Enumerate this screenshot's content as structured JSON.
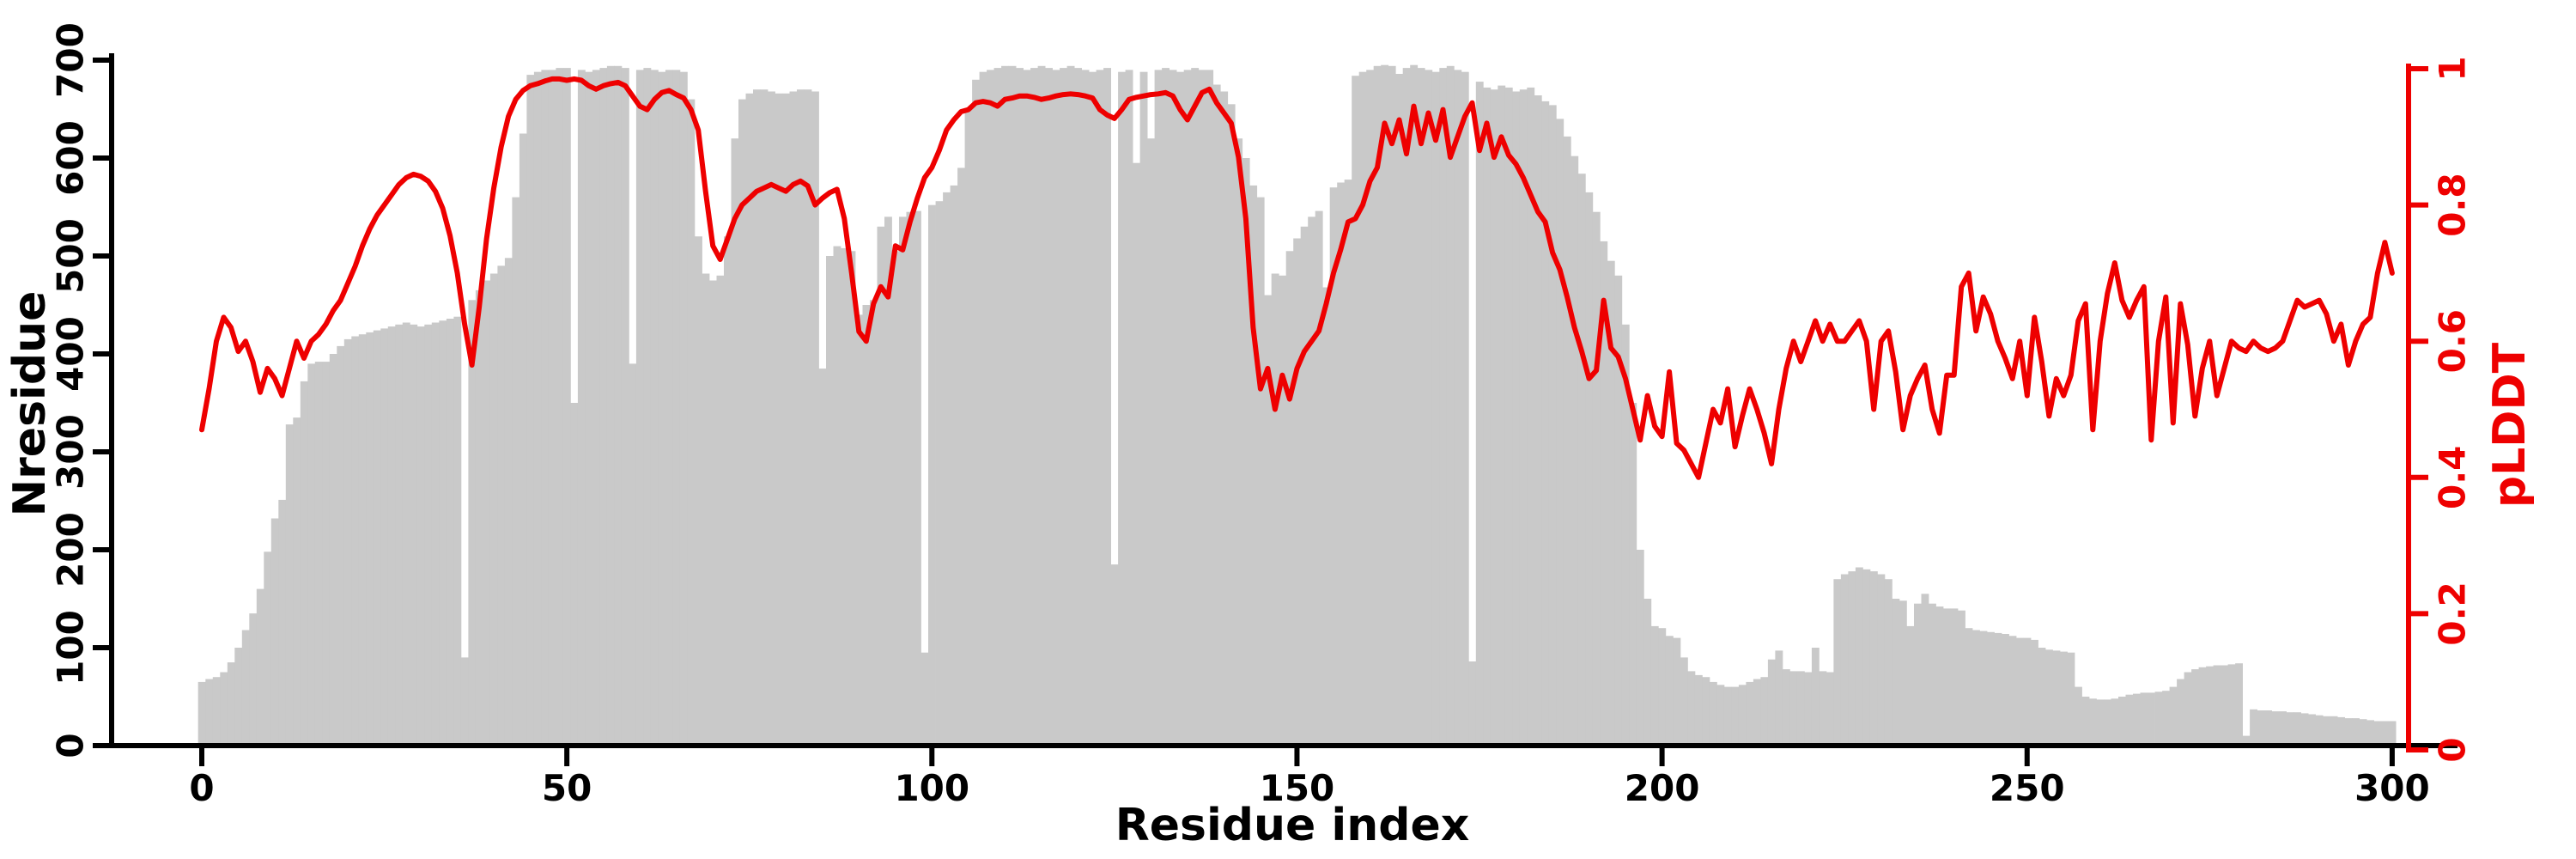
{
  "figure": {
    "background": "#ffffff",
    "bar_color": "#c9c9c9",
    "line_color": "#ee0000",
    "axis_color": "#000000"
  },
  "axes": {
    "x": {
      "label": "Residue index",
      "tick_values": [
        0,
        50,
        100,
        150,
        200,
        250,
        300
      ],
      "range": [
        0,
        300
      ]
    },
    "y_left": {
      "label": "Nresidue",
      "tick_values": [
        0,
        100,
        200,
        300,
        400,
        500,
        600,
        700
      ],
      "range": [
        0,
        700
      ],
      "color": "#000000"
    },
    "y_right": {
      "label": "pLDDT",
      "tick_labels": [
        "0",
        "0.2",
        "0.4",
        "0.6",
        "0.8",
        "1"
      ],
      "tick_values": [
        0,
        0.2,
        0.4,
        0.6,
        0.8,
        1
      ],
      "range": [
        0,
        1
      ],
      "color": "#ee0000"
    }
  },
  "chart_data": {
    "type": "combo",
    "x": {
      "start": 0,
      "step": 1,
      "label": "Residue index"
    },
    "grid": false,
    "legend": "none",
    "series": [
      {
        "name": "Nresidue",
        "type": "bar",
        "axis": "left",
        "color": "#c9c9c9",
        "ylim": [
          0,
          700
        ],
        "values": [
          65,
          68,
          70,
          75,
          85,
          100,
          118,
          135,
          160,
          198,
          232,
          251,
          328,
          335,
          372,
          390,
          392,
          392,
          400,
          408,
          415,
          418,
          420,
          422,
          424,
          426,
          428,
          430,
          432,
          430,
          428,
          430,
          432,
          434,
          436,
          438,
          90,
          455,
          465,
          475,
          482,
          490,
          498,
          560,
          625,
          685,
          688,
          690,
          690,
          692,
          692,
          350,
          690,
          688,
          690,
          692,
          694,
          694,
          692,
          390,
          690,
          692,
          690,
          688,
          690,
          690,
          688,
          660,
          520,
          482,
          475,
          480,
          520,
          620,
          660,
          666,
          670,
          670,
          668,
          666,
          666,
          668,
          670,
          670,
          668,
          385,
          500,
          510,
          508,
          505,
          440,
          450,
          455,
          530,
          540,
          505,
          540,
          545,
          546,
          95,
          552,
          556,
          565,
          572,
          590,
          650,
          680,
          688,
          690,
          692,
          694,
          694,
          692,
          690,
          692,
          694,
          692,
          690,
          692,
          694,
          692,
          690,
          688,
          690,
          692,
          185,
          688,
          690,
          595,
          688,
          620,
          690,
          692,
          690,
          688,
          690,
          692,
          690,
          690,
          675,
          668,
          655,
          620,
          600,
          572,
          560,
          460,
          482,
          480,
          505,
          518,
          530,
          540,
          546,
          468,
          570,
          575,
          578,
          684,
          688,
          690,
          694,
          695,
          694,
          686,
          692,
          695,
          692,
          690,
          688,
          692,
          694,
          690,
          688,
          86,
          678,
          672,
          670,
          674,
          672,
          668,
          670,
          672,
          664,
          658,
          654,
          640,
          622,
          602,
          584,
          565,
          545,
          515,
          495,
          480,
          430,
          350,
          200,
          150,
          122,
          120,
          112,
          110,
          90,
          76,
          72,
          70,
          65,
          62,
          60,
          60,
          62,
          65,
          68,
          70,
          88,
          97,
          78,
          76,
          76,
          75,
          100,
          76,
          75,
          170,
          175,
          178,
          182,
          180,
          178,
          175,
          170,
          150,
          148,
          122,
          145,
          155,
          145,
          142,
          140,
          140,
          138,
          120,
          118,
          117,
          116,
          115,
          114,
          112,
          110,
          110,
          108,
          100,
          98,
          97,
          96,
          95,
          60,
          50,
          48,
          47,
          47,
          48,
          50,
          52,
          53,
          54,
          54,
          55,
          56,
          60,
          68,
          75,
          78,
          80,
          81,
          82,
          82,
          83,
          84,
          10,
          37,
          36,
          36,
          35,
          35,
          34,
          34,
          33,
          32,
          31,
          30,
          30,
          29,
          28,
          28,
          27,
          26,
          25,
          25,
          25
        ]
      },
      {
        "name": "pLDDT",
        "type": "line",
        "axis": "right",
        "color": "#ee0000",
        "ylim": [
          0,
          1
        ],
        "values": [
          0.47,
          0.53,
          0.6,
          0.635,
          0.62,
          0.585,
          0.6,
          0.57,
          0.525,
          0.56,
          0.545,
          0.52,
          0.56,
          0.6,
          0.575,
          0.6,
          0.61,
          0.625,
          0.645,
          0.66,
          0.685,
          0.71,
          0.74,
          0.765,
          0.785,
          0.8,
          0.815,
          0.83,
          0.84,
          0.845,
          0.842,
          0.835,
          0.82,
          0.795,
          0.755,
          0.7,
          0.625,
          0.565,
          0.65,
          0.75,
          0.825,
          0.885,
          0.93,
          0.955,
          0.968,
          0.975,
          0.978,
          0.982,
          0.985,
          0.985,
          0.983,
          0.985,
          0.983,
          0.975,
          0.97,
          0.975,
          0.978,
          0.98,
          0.975,
          0.96,
          0.945,
          0.94,
          0.955,
          0.965,
          0.968,
          0.962,
          0.957,
          0.94,
          0.91,
          0.82,
          0.74,
          0.72,
          0.75,
          0.78,
          0.8,
          0.81,
          0.82,
          0.825,
          0.83,
          0.825,
          0.82,
          0.83,
          0.835,
          0.828,
          0.8,
          0.81,
          0.818,
          0.823,
          0.78,
          0.7,
          0.614,
          0.6,
          0.655,
          0.68,
          0.665,
          0.74,
          0.734,
          0.775,
          0.81,
          0.84,
          0.855,
          0.88,
          0.91,
          0.925,
          0.937,
          0.94,
          0.95,
          0.952,
          0.95,
          0.945,
          0.955,
          0.957,
          0.96,
          0.96,
          0.958,
          0.955,
          0.957,
          0.96,
          0.962,
          0.963,
          0.962,
          0.96,
          0.957,
          0.94,
          0.932,
          0.927,
          0.94,
          0.955,
          0.958,
          0.96,
          0.962,
          0.963,
          0.965,
          0.96,
          0.94,
          0.925,
          0.945,
          0.965,
          0.97,
          0.95,
          0.935,
          0.92,
          0.87,
          0.78,
          0.62,
          0.53,
          0.56,
          0.5,
          0.55,
          0.515,
          0.56,
          0.585,
          0.6,
          0.615,
          0.655,
          0.7,
          0.735,
          0.775,
          0.78,
          0.8,
          0.835,
          0.855,
          0.92,
          0.89,
          0.925,
          0.875,
          0.945,
          0.89,
          0.935,
          0.895,
          0.94,
          0.87,
          0.9,
          0.93,
          0.95,
          0.88,
          0.92,
          0.87,
          0.9,
          0.873,
          0.86,
          0.84,
          0.815,
          0.79,
          0.775,
          0.73,
          0.705,
          0.665,
          0.62,
          0.585,
          0.545,
          0.557,
          0.66,
          0.59,
          0.577,
          0.545,
          0.5,
          0.455,
          0.52,
          0.475,
          0.46,
          0.555,
          0.45,
          0.44,
          0.42,
          0.4,
          0.45,
          0.5,
          0.48,
          0.53,
          0.445,
          0.49,
          0.53,
          0.5,
          0.465,
          0.42,
          0.5,
          0.56,
          0.6,
          0.57,
          0.6,
          0.63,
          0.6,
          0.625,
          0.6,
          0.6,
          0.615,
          0.63,
          0.6,
          0.5,
          0.6,
          0.615,
          0.555,
          0.47,
          0.52,
          0.545,
          0.565,
          0.5,
          0.465,
          0.55,
          0.55,
          0.68,
          0.7,
          0.615,
          0.665,
          0.64,
          0.6,
          0.575,
          0.545,
          0.6,
          0.52,
          0.635,
          0.57,
          0.49,
          0.545,
          0.52,
          0.55,
          0.63,
          0.655,
          0.47,
          0.6,
          0.67,
          0.715,
          0.66,
          0.635,
          0.66,
          0.68,
          0.455,
          0.6,
          0.665,
          0.48,
          0.655,
          0.595,
          0.49,
          0.56,
          0.6,
          0.52,
          0.56,
          0.6,
          0.59,
          0.585,
          0.6,
          0.59,
          0.585,
          0.59,
          0.6,
          0.63,
          0.66,
          0.65,
          0.655,
          0.66,
          0.64,
          0.6,
          0.625,
          0.565,
          0.6,
          0.625,
          0.635,
          0.7,
          0.745,
          0.7
        ]
      }
    ]
  }
}
